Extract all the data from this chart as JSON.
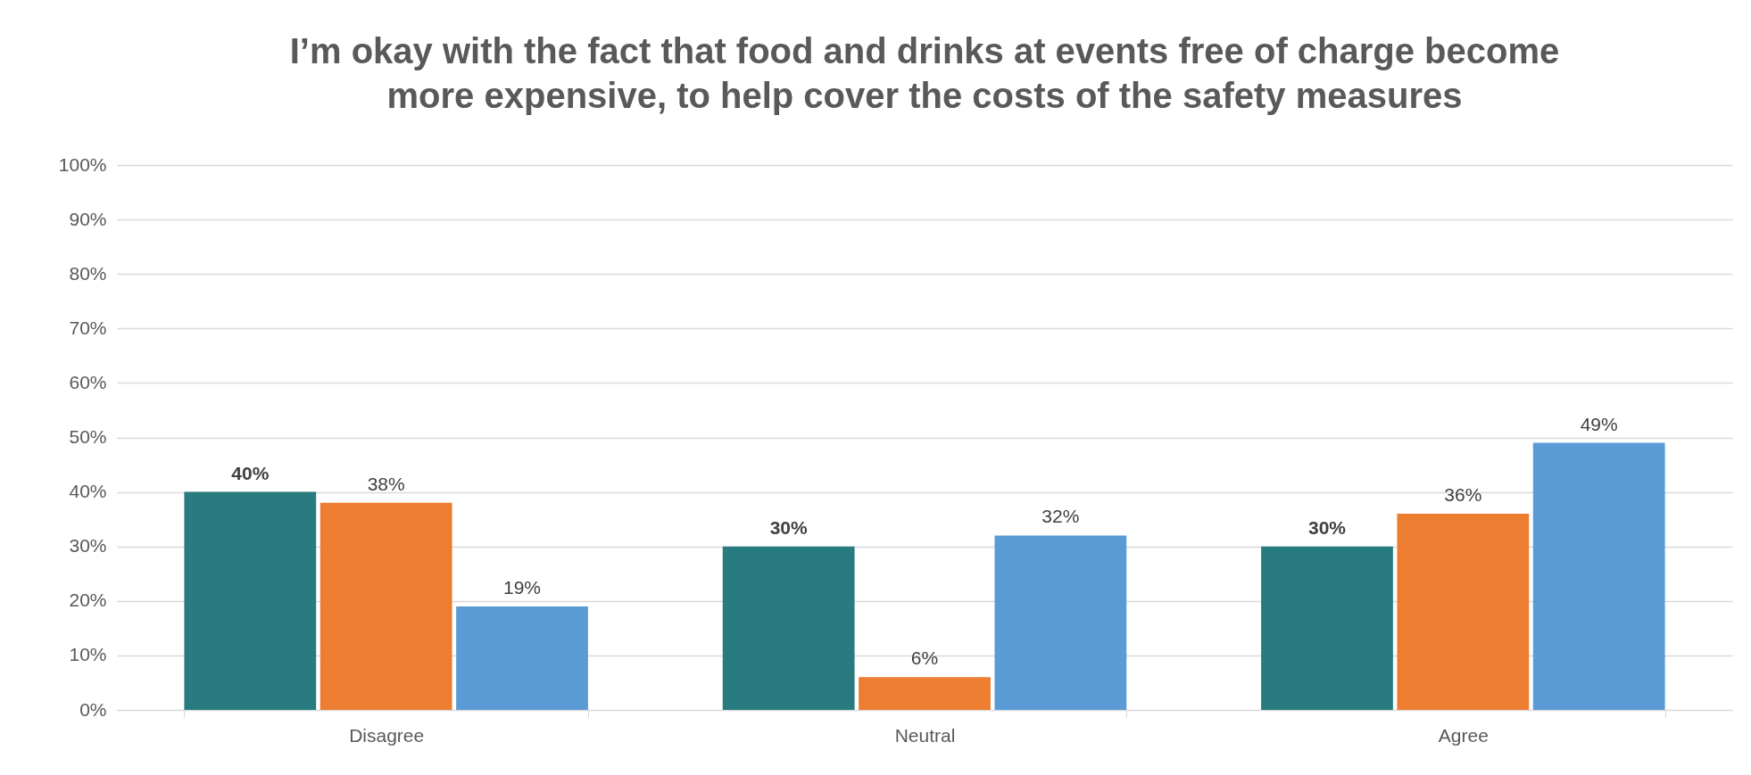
{
  "chart_data": {
    "type": "bar",
    "title": "I’m okay with the fact that food and drinks at events free of charge become\nmore expensive, to help cover the costs of the safety measures",
    "categories": [
      "Disagree",
      "Neutral",
      "Agree"
    ],
    "series": [
      {
        "color": "#287b7e",
        "values": [
          40,
          30,
          30
        ],
        "value_labels": [
          "40%",
          "30%",
          "30%"
        ]
      },
      {
        "color": "#ed7d31",
        "values": [
          38,
          6,
          36
        ],
        "value_labels": [
          "38%",
          "6%",
          "36%"
        ]
      },
      {
        "color": "#5b9bd5",
        "values": [
          19,
          32,
          49
        ],
        "value_labels": [
          "19%",
          "32%",
          "49%"
        ]
      }
    ],
    "ylim": [
      0,
      100
    ],
    "yticks": [
      {
        "value": 0,
        "label": "0%"
      },
      {
        "value": 10,
        "label": "10%"
      },
      {
        "value": 20,
        "label": "20%"
      },
      {
        "value": 30,
        "label": "30%"
      },
      {
        "value": 40,
        "label": "40%"
      },
      {
        "value": 50,
        "label": "50%"
      },
      {
        "value": 60,
        "label": "60%"
      },
      {
        "value": 70,
        "label": "70%"
      },
      {
        "value": 80,
        "label": "80%"
      },
      {
        "value": 90,
        "label": "90%"
      },
      {
        "value": 100,
        "label": "100%"
      }
    ],
    "grid": "y",
    "legend": false
  }
}
